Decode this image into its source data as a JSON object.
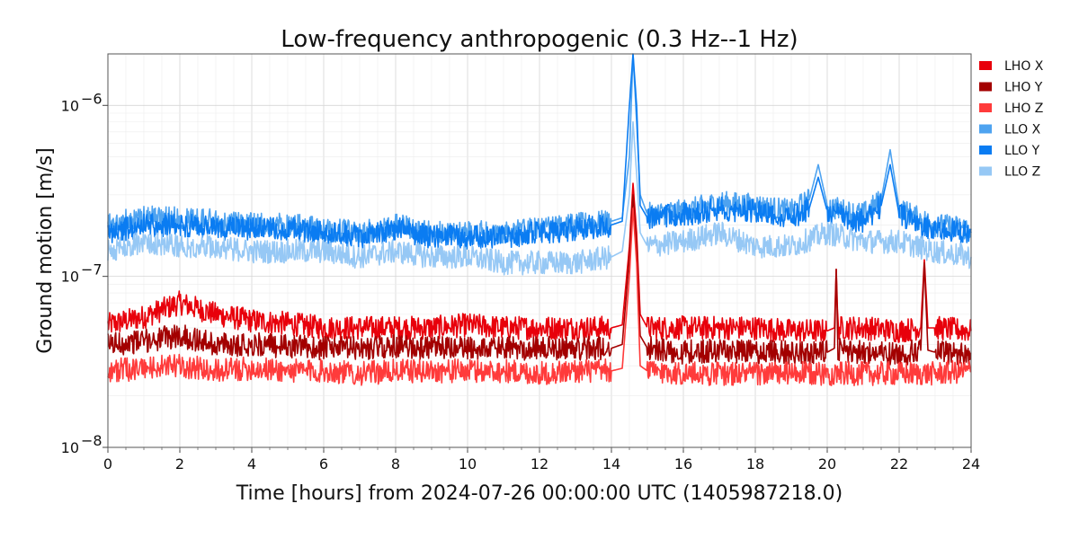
{
  "chart_data": {
    "type": "line",
    "title": "Low-frequency anthropogenic (0.3 Hz--1 Hz)",
    "xlabel": "Time [hours] from 2024-07-26 00:00:00 UTC (1405987218.0)",
    "ylabel": "Ground motion [m/s]",
    "xlim": [
      0,
      24
    ],
    "ylim": [
      1e-08,
      2e-06
    ],
    "yscale": "log",
    "grid": true,
    "legend_placement": "top-right outside",
    "x_ticks": [
      0,
      2,
      4,
      6,
      8,
      10,
      12,
      14,
      16,
      18,
      20,
      22,
      24
    ],
    "x_tick_labels": [
      "0",
      "2",
      "4",
      "6",
      "8",
      "10",
      "12",
      "14",
      "16",
      "18",
      "20",
      "22",
      "24"
    ],
    "y_ticks": [
      1e-08,
      1e-07,
      1e-06
    ],
    "y_tick_labels": [
      {
        "base": "10",
        "exp": "−8"
      },
      {
        "base": "10",
        "exp": "−7"
      },
      {
        "base": "10",
        "exp": "−6"
      }
    ],
    "series": [
      {
        "name": "LHO X",
        "color": "#e8000b",
        "x": [
          0,
          1,
          2,
          3,
          4,
          5,
          6,
          7,
          8,
          9,
          10,
          11,
          12,
          13,
          14,
          14.3,
          14.5,
          14.6,
          14.7,
          14.8,
          15,
          16,
          17,
          18,
          19,
          20,
          20.2,
          20.25,
          20.3,
          21,
          22,
          22.6,
          22.7,
          22.8,
          23,
          24
        ],
        "values": [
          5.2e-08,
          5.8e-08,
          7e-08,
          6e-08,
          5.5e-08,
          5.3e-08,
          5e-08,
          5e-08,
          5e-08,
          5e-08,
          5.2e-08,
          5e-08,
          5e-08,
          5e-08,
          5e-08,
          5.2e-08,
          1.5e-07,
          3.5e-07,
          1.8e-07,
          6e-08,
          5e-08,
          5e-08,
          5e-08,
          5e-08,
          4.8e-08,
          4.8e-08,
          5e-08,
          1.1e-07,
          5e-08,
          5e-08,
          4.8e-08,
          5e-08,
          1.25e-07,
          5e-08,
          5e-08,
          4.8e-08
        ]
      },
      {
        "name": "LHO Y",
        "color": "#a30000",
        "x": [
          0,
          1,
          2,
          3,
          4,
          5,
          6,
          7,
          8,
          9,
          10,
          11,
          12,
          13,
          14,
          14.3,
          14.5,
          14.6,
          14.7,
          14.8,
          15,
          16,
          17,
          18,
          19,
          20,
          20.2,
          20.25,
          20.3,
          21,
          22,
          22.6,
          22.7,
          22.8,
          23,
          24
        ],
        "values": [
          4e-08,
          4.2e-08,
          4.5e-08,
          4e-08,
          4e-08,
          3.9e-08,
          3.8e-08,
          3.8e-08,
          3.9e-08,
          3.8e-08,
          3.8e-08,
          3.8e-08,
          3.8e-08,
          3.8e-08,
          3.8e-08,
          4e-08,
          1.3e-07,
          3e-07,
          1.5e-07,
          4.5e-08,
          3.8e-08,
          3.6e-08,
          3.7e-08,
          3.6e-08,
          3.6e-08,
          3.6e-08,
          3.8e-08,
          1.1e-07,
          3.7e-08,
          3.6e-08,
          3.5e-08,
          3.7e-08,
          1.2e-07,
          3.7e-08,
          3.6e-08,
          3.5e-08
        ]
      },
      {
        "name": "LHO Z",
        "color": "#ff3b3b",
        "x": [
          0,
          1,
          2,
          3,
          4,
          5,
          6,
          7,
          8,
          9,
          10,
          11,
          12,
          13,
          14,
          14.3,
          14.5,
          14.6,
          14.7,
          14.8,
          15,
          16,
          17,
          18,
          19,
          20,
          21,
          22,
          23,
          24
        ],
        "values": [
          2.8e-08,
          2.9e-08,
          3e-08,
          2.8e-08,
          2.9e-08,
          2.8e-08,
          2.8e-08,
          2.7e-08,
          2.8e-08,
          2.8e-08,
          2.8e-08,
          2.8e-08,
          2.7e-08,
          2.8e-08,
          2.8e-08,
          2.9e-08,
          1e-07,
          2.5e-07,
          1.2e-07,
          3e-08,
          2.8e-08,
          2.7e-08,
          2.7e-08,
          2.7e-08,
          2.7e-08,
          2.7e-08,
          2.7e-08,
          2.7e-08,
          2.7e-08,
          2.8e-08
        ]
      },
      {
        "name": "LLO X",
        "color": "#4ea3f0",
        "x": [
          0,
          1,
          2,
          3,
          4,
          5,
          6,
          7,
          8,
          9,
          10,
          11,
          12,
          13,
          14,
          14.3,
          14.5,
          14.6,
          14.7,
          14.8,
          15,
          16,
          17,
          18,
          19,
          19.5,
          19.75,
          20,
          20.5,
          21,
          21.5,
          21.75,
          22,
          22.5,
          23,
          24
        ],
        "values": [
          2e-07,
          2.2e-07,
          2.2e-07,
          2.1e-07,
          2e-07,
          2e-07,
          1.9e-07,
          1.8e-07,
          2e-07,
          1.8e-07,
          1.8e-07,
          1.8e-07,
          1.9e-07,
          2e-07,
          2.1e-07,
          2.2e-07,
          5e-07,
          2e-06,
          8e-07,
          3e-07,
          2.3e-07,
          2.4e-07,
          2.7e-07,
          2.6e-07,
          2.4e-07,
          2.8e-07,
          4.5e-07,
          2.6e-07,
          2.4e-07,
          2.3e-07,
          2.8e-07,
          5.5e-07,
          2.5e-07,
          2.2e-07,
          2e-07,
          1.9e-07
        ]
      },
      {
        "name": "LLO Y",
        "color": "#0a7cf2",
        "x": [
          0,
          1,
          2,
          3,
          4,
          5,
          6,
          7,
          8,
          9,
          10,
          11,
          12,
          13,
          14,
          14.3,
          14.5,
          14.6,
          14.7,
          14.8,
          15,
          16,
          17,
          18,
          19,
          19.5,
          19.75,
          20,
          20.5,
          21,
          21.5,
          21.75,
          22,
          22.5,
          23,
          24
        ],
        "values": [
          1.8e-07,
          2e-07,
          2e-07,
          1.9e-07,
          1.9e-07,
          1.9e-07,
          1.8e-07,
          1.7e-07,
          1.9e-07,
          1.7e-07,
          1.7e-07,
          1.7e-07,
          1.8e-07,
          1.9e-07,
          2e-07,
          2.1e-07,
          1e-06,
          2e-06,
          1e-06,
          2.6e-07,
          2.2e-07,
          2.3e-07,
          2.5e-07,
          2.4e-07,
          2.2e-07,
          2.5e-07,
          3.8e-07,
          2.4e-07,
          2.2e-07,
          2.1e-07,
          2.6e-07,
          4.5e-07,
          2.3e-07,
          2e-07,
          1.9e-07,
          1.8e-07
        ]
      },
      {
        "name": "LLO Z",
        "color": "#96c8f5",
        "x": [
          0,
          1,
          2,
          3,
          4,
          5,
          6,
          7,
          8,
          9,
          10,
          11,
          12,
          13,
          14,
          14.3,
          14.5,
          14.6,
          14.7,
          14.8,
          15,
          16,
          17,
          18,
          19,
          20,
          21,
          22,
          23,
          24
        ],
        "values": [
          1.4e-07,
          1.6e-07,
          1.5e-07,
          1.5e-07,
          1.4e-07,
          1.4e-07,
          1.4e-07,
          1.3e-07,
          1.4e-07,
          1.3e-07,
          1.3e-07,
          1.2e-07,
          1.2e-07,
          1.2e-07,
          1.3e-07,
          1.4e-07,
          3e-07,
          8e-07,
          4e-07,
          1.8e-07,
          1.5e-07,
          1.6e-07,
          1.8e-07,
          1.5e-07,
          1.5e-07,
          1.8e-07,
          1.6e-07,
          1.6e-07,
          1.4e-07,
          1.3e-07
        ]
      }
    ]
  }
}
